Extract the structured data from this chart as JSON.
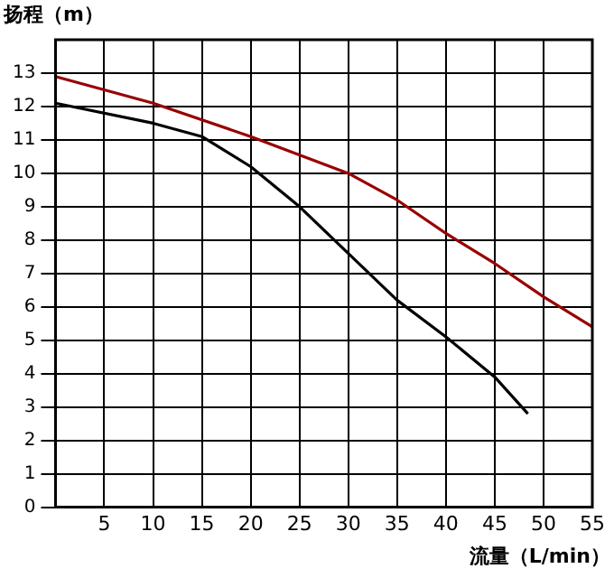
{
  "chart_data": {
    "type": "line",
    "xlabel": "流量（L/min）",
    "ylabel": "扬程（m）",
    "xlim": [
      0,
      55
    ],
    "xticks": [
      5,
      10,
      15,
      20,
      25,
      30,
      35,
      40,
      45,
      50,
      55
    ],
    "ylim": [
      0,
      14
    ],
    "yticks": [
      0,
      1,
      2,
      3,
      4,
      5,
      6,
      7,
      8,
      9,
      10,
      11,
      12,
      13
    ],
    "grid": true,
    "marker": "none",
    "line_style": "solid",
    "series": [
      {
        "color": "#990000",
        "x": [
          0,
          10,
          20,
          30,
          35,
          40,
          45,
          50,
          55
        ],
        "values": [
          12.9,
          12.1,
          11.1,
          10.0,
          9.2,
          8.2,
          7.3,
          6.3,
          5.4
        ]
      },
      {
        "color": "#000000",
        "x": [
          0,
          10,
          15,
          20,
          25,
          30,
          35,
          40,
          45,
          48.4
        ],
        "values": [
          12.1,
          11.5,
          11.1,
          10.2,
          9.0,
          7.6,
          6.2,
          5.1,
          3.9,
          2.8
        ]
      }
    ]
  }
}
